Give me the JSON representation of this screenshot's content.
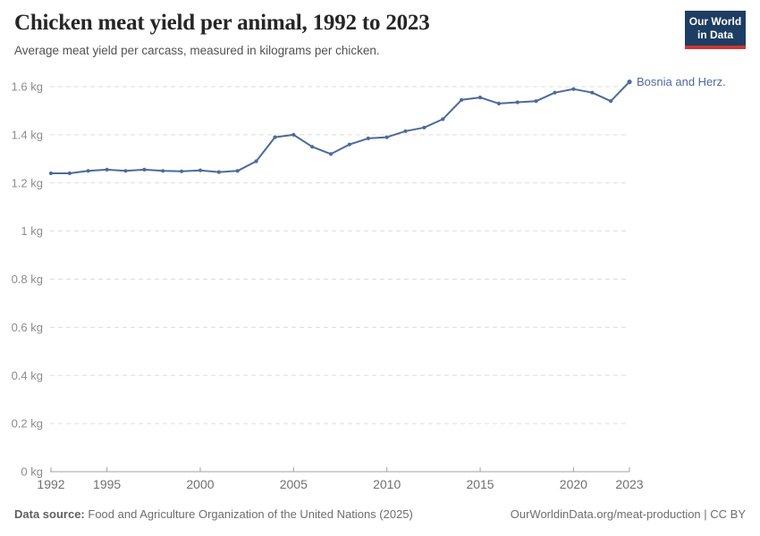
{
  "header": {
    "title": "Chicken meat yield per animal, 1992 to 2023",
    "subtitle": "Average meat yield per carcass, measured in kilograms per chicken."
  },
  "logo": {
    "line1": "Our World",
    "line2": "in Data",
    "bg_color": "#1d3d63",
    "bar_color": "#cd3731"
  },
  "chart_data": {
    "type": "line",
    "title": "Chicken meat yield per animal, 1992 to 2023",
    "unit": "kg",
    "xlim": [
      1992,
      2023
    ],
    "ylim": [
      0,
      1.6
    ],
    "grid": "horizontal-dashed",
    "legend_position": "end-of-line",
    "x": [
      1992,
      1993,
      1994,
      1995,
      1996,
      1997,
      1998,
      1999,
      2000,
      2001,
      2002,
      2003,
      2004,
      2005,
      2006,
      2007,
      2008,
      2009,
      2010,
      2011,
      2012,
      2013,
      2014,
      2015,
      2016,
      2017,
      2018,
      2019,
      2020,
      2021,
      2022,
      2023
    ],
    "series": [
      {
        "name": "Bosnia and Herz.",
        "color": "#4C6A9C",
        "values": [
          1.24,
          1.24,
          1.25,
          1.255,
          1.25,
          1.255,
          1.25,
          1.248,
          1.252,
          1.245,
          1.25,
          1.29,
          1.39,
          1.4,
          1.35,
          1.32,
          1.36,
          1.385,
          1.39,
          1.415,
          1.43,
          1.465,
          1.545,
          1.555,
          1.53,
          1.535,
          1.54,
          1.575,
          1.59,
          1.575,
          1.54,
          1.62
        ]
      }
    ],
    "y_ticks": [
      {
        "value": 0,
        "label": "0 kg"
      },
      {
        "value": 0.2,
        "label": "0.2 kg"
      },
      {
        "value": 0.4,
        "label": "0.4 kg"
      },
      {
        "value": 0.6,
        "label": "0.6 kg"
      },
      {
        "value": 0.8,
        "label": "0.8 kg"
      },
      {
        "value": 1,
        "label": "1 kg"
      },
      {
        "value": 1.2,
        "label": "1.2 kg"
      },
      {
        "value": 1.4,
        "label": "1.4 kg"
      },
      {
        "value": 1.6,
        "label": "1.6 kg"
      }
    ],
    "x_ticks": [
      {
        "value": 1992,
        "label": "1992"
      },
      {
        "value": 1995,
        "label": "1995"
      },
      {
        "value": 2000,
        "label": "2000"
      },
      {
        "value": 2005,
        "label": "2005"
      },
      {
        "value": 2010,
        "label": "2010"
      },
      {
        "value": 2015,
        "label": "2015"
      },
      {
        "value": 2020,
        "label": "2020"
      },
      {
        "value": 2023,
        "label": "2023"
      }
    ]
  },
  "footer": {
    "source_label": "Data source:",
    "source_text": "Food and Agriculture Organization of the United Nations (2025)",
    "rights": "OurWorldinData.org/meat-production | CC BY"
  },
  "colors": {
    "line": "#4C6A9C",
    "grid": "#dddddd",
    "axis": "#a1a1a1",
    "y_tick_text": "#8c8c8c",
    "x_tick_text": "#707070",
    "title": "#262626",
    "subtitle": "#525252",
    "footer": "#6e6e6e"
  }
}
